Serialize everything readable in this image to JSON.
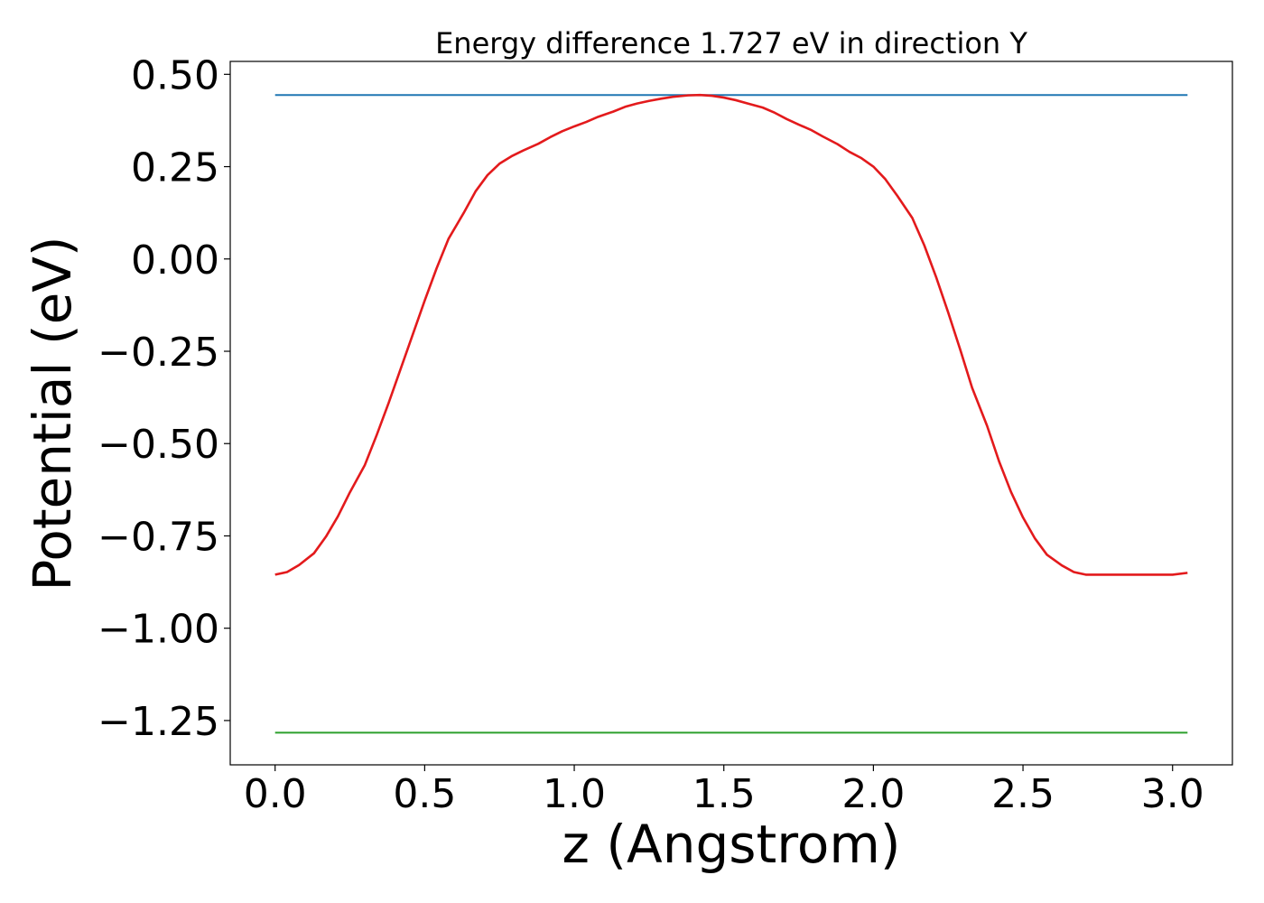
{
  "chart_data": {
    "type": "line",
    "title": "Energy difference 1.727 eV in direction Y",
    "xlabel": "z (Angstrom)",
    "ylabel": "Potential (eV)",
    "xlim": [
      -0.15,
      3.2
    ],
    "ylim": [
      -1.37,
      0.535
    ],
    "x_ticks": [
      0.0,
      0.5,
      1.0,
      1.5,
      2.0,
      2.5,
      3.0
    ],
    "x_tick_labels": [
      "0.0",
      "0.5",
      "1.0",
      "1.5",
      "2.0",
      "2.5",
      "3.0"
    ],
    "y_ticks": [
      0.5,
      0.25,
      0.0,
      -0.25,
      -0.5,
      -0.75,
      -1.0,
      -1.25
    ],
    "y_tick_labels": [
      "0.50",
      "0.25",
      "0.00",
      "−0.25",
      "−0.50",
      "−0.75",
      "−1.00",
      "−1.25"
    ],
    "grid": false,
    "series": [
      {
        "color": "#1f77b4",
        "x": [
          0.0,
          3.05
        ],
        "y": [
          0.444,
          0.444
        ]
      },
      {
        "color": "#2ca02c",
        "x": [
          0.0,
          3.05
        ],
        "y": [
          -1.283,
          -1.283
        ]
      },
      {
        "color": "#e31a1c",
        "x": [
          0.0,
          0.04,
          0.08,
          0.13,
          0.17,
          0.21,
          0.25,
          0.3,
          0.34,
          0.38,
          0.42,
          0.46,
          0.5,
          0.54,
          0.58,
          0.63,
          0.67,
          0.71,
          0.75,
          0.79,
          0.83,
          0.88,
          0.92,
          0.96,
          1.0,
          1.04,
          1.08,
          1.13,
          1.17,
          1.21,
          1.25,
          1.29,
          1.33,
          1.38,
          1.42,
          1.46,
          1.5,
          1.54,
          1.58,
          1.63,
          1.67,
          1.71,
          1.75,
          1.79,
          1.83,
          1.88,
          1.92,
          1.96,
          2.0,
          2.04,
          2.08,
          2.13,
          2.17,
          2.21,
          2.25,
          2.29,
          2.33,
          2.38,
          2.42,
          2.46,
          2.5,
          2.54,
          2.58,
          2.63,
          2.67,
          2.71,
          2.75,
          2.79,
          2.83,
          2.88,
          2.92,
          2.96,
          3.0,
          3.05
        ],
        "y": [
          -0.855,
          -0.848,
          -0.829,
          -0.797,
          -0.752,
          -0.697,
          -0.632,
          -0.558,
          -0.476,
          -0.389,
          -0.297,
          -0.205,
          -0.113,
          -0.025,
          0.055,
          0.124,
          0.183,
          0.227,
          0.258,
          0.278,
          0.294,
          0.312,
          0.33,
          0.346,
          0.359,
          0.371,
          0.385,
          0.399,
          0.412,
          0.421,
          0.428,
          0.434,
          0.439,
          0.443,
          0.444,
          0.442,
          0.437,
          0.43,
          0.421,
          0.41,
          0.396,
          0.379,
          0.364,
          0.35,
          0.332,
          0.311,
          0.29,
          0.273,
          0.25,
          0.216,
          0.171,
          0.111,
          0.037,
          -0.05,
          -0.145,
          -0.245,
          -0.349,
          -0.452,
          -0.548,
          -0.631,
          -0.7,
          -0.757,
          -0.801,
          -0.83,
          -0.848,
          -0.855,
          -0.855,
          -0.855,
          -0.855,
          -0.855,
          -0.855,
          -0.855,
          -0.855,
          -0.85
        ]
      }
    ]
  }
}
